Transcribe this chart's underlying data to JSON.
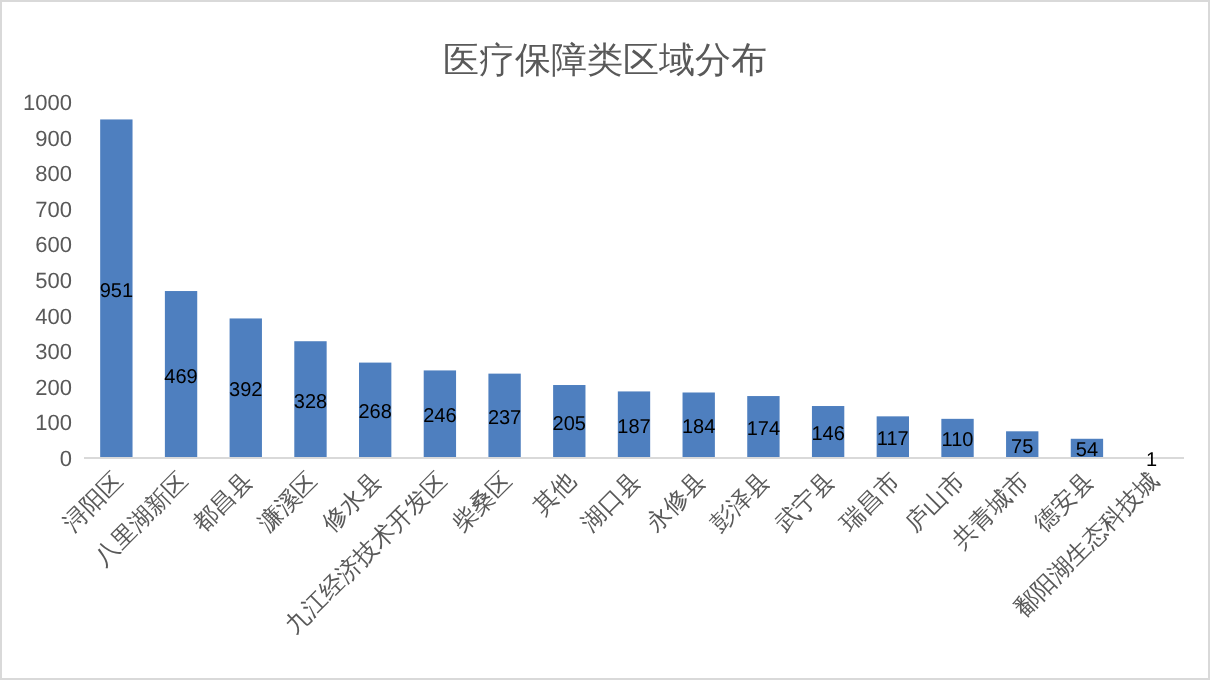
{
  "chart_data": {
    "type": "bar",
    "title": "医疗保障类区域分布",
    "categories": [
      "浔阳区",
      "八里湖新区",
      "都昌县",
      "濂溪区",
      "修水县",
      "九江经济技术开发区",
      "柴桑区",
      "其他",
      "湖口县",
      "永修县",
      "彭泽县",
      "武宁县",
      "瑞昌市",
      "庐山市",
      "共青城市",
      "德安县",
      "鄱阳湖生态科技城"
    ],
    "values": [
      951,
      469,
      392,
      328,
      268,
      246,
      237,
      205,
      187,
      184,
      174,
      146,
      117,
      110,
      75,
      54,
      1
    ],
    "color": "#4e7fbf",
    "ylim": [
      0,
      1000
    ],
    "yticks": [
      0,
      100,
      200,
      300,
      400,
      500,
      600,
      700,
      800,
      900,
      1000
    ],
    "data_labels": true,
    "grid": false
  }
}
